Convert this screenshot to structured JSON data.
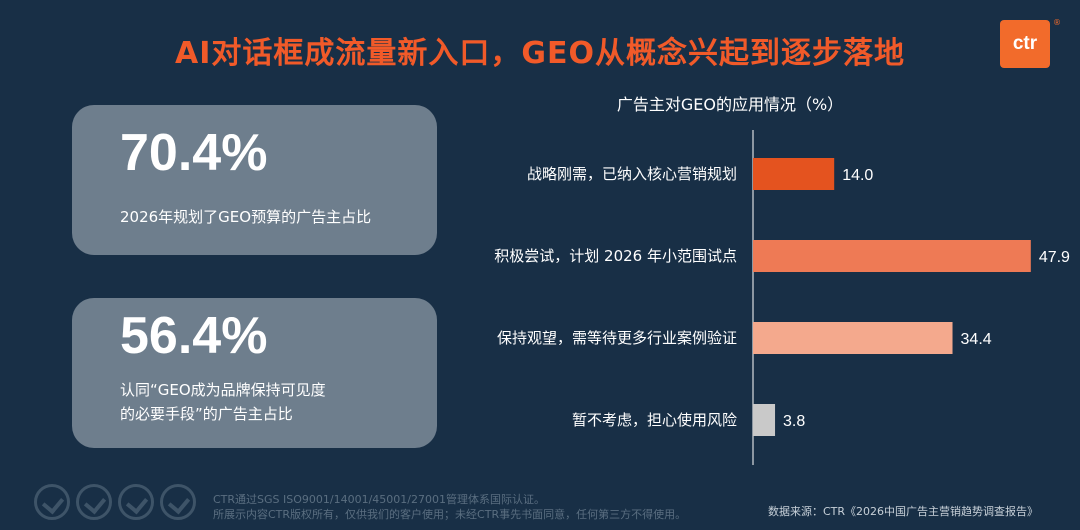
{
  "header": {
    "title": "AI对话框成流量新入口，GEO从概念兴起到逐步落地",
    "logo_text": "ctr",
    "logo_mark": "®"
  },
  "stats": [
    {
      "value": "70.4%",
      "desc_line1": "2026年规划了GEO预算的广告主占比",
      "desc_line2": ""
    },
    {
      "value": "56.4%",
      "desc_line1": "认同“GEO成为品牌保持可见度",
      "desc_line2": "的必要手段”的广告主占比"
    }
  ],
  "chart_data": {
    "type": "bar",
    "orientation": "horizontal",
    "title": "广告主对GEO的应用情况（%）",
    "categories": [
      "战略刚需，已纳入核心营销规划",
      "积极尝试，计划 2026 年小范围试点",
      "保持观望，需等待更多行业案例验证",
      "暂不考虑，担心使用风险"
    ],
    "values": [
      14.0,
      47.9,
      34.4,
      3.8
    ],
    "value_labels": [
      "14.0",
      "47.9",
      "34.4",
      "3.8"
    ],
    "colors": [
      "#e4531f",
      "#ee7a55",
      "#f4a98d",
      "#c9c9c9"
    ],
    "xlim": [
      0,
      50
    ],
    "grid": false,
    "legend": "none"
  },
  "footer": {
    "line1": "CTR通过SGS ISO9001/14001/45001/27001管理体系国际认证。",
    "line2": "所展示内容CTR版权所有，仅供我们的客户使用；未经CTR事先书面同意，任何第三方不得使用。",
    "source": "数据来源：CTR《2026中国广告主营销趋势调查报告》",
    "badge_icons": [
      "sgs-cert-icon",
      "sgs-cert-icon",
      "sgs-cert-icon",
      "sgs-cert-icon"
    ]
  }
}
